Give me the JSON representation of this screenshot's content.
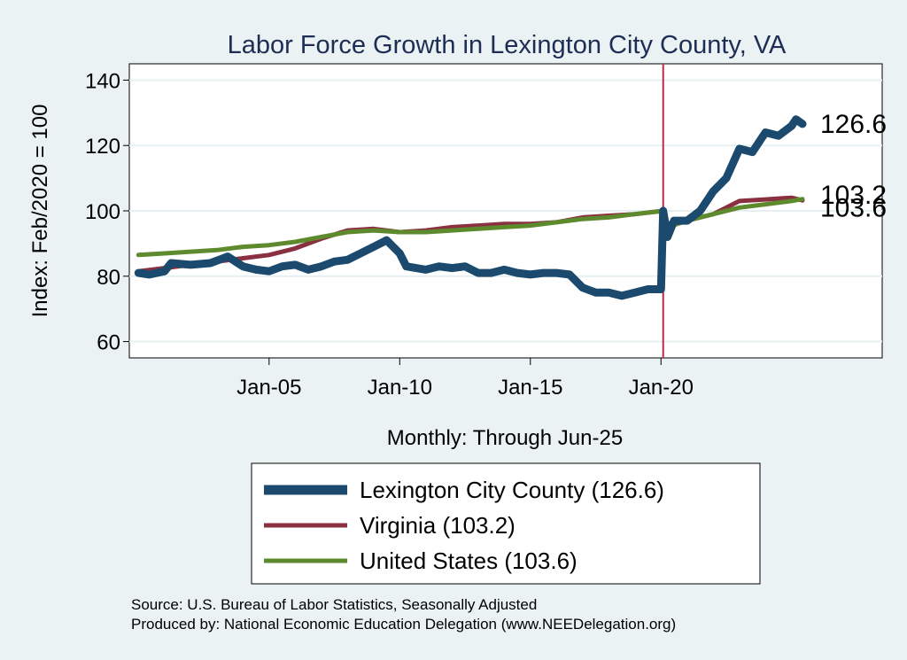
{
  "chart_data": {
    "type": "line",
    "title": "Labor Force Growth in Lexington City  County, VA",
    "xlabel": "Monthly: Through Jun-25",
    "ylabel": "Index: Feb/2020 = 100",
    "x_range": [
      "Jan-2000",
      "Jun-2025"
    ],
    "ylim": [
      55,
      145
    ],
    "y_ticks": [
      60,
      80,
      100,
      120,
      140
    ],
    "x_tick_labels": [
      "Jan-05",
      "Jan-10",
      "Jan-15",
      "Jan-20"
    ],
    "reference_line": {
      "x": "Feb-2020",
      "color": "#c0284a"
    },
    "grid": "horizontal",
    "legend_position": "bottom",
    "series": [
      {
        "name": "Lexington City  County (126.6)",
        "color": "#1b4a6e",
        "end_label": "126.6",
        "points": [
          [
            "Jan-2000",
            81
          ],
          [
            "Jun-2000",
            80.5
          ],
          [
            "Jan-2001",
            81.5
          ],
          [
            "Apr-2001",
            84
          ],
          [
            "Jan-2002",
            83.5
          ],
          [
            "Oct-2002",
            84
          ],
          [
            "Jun-2003",
            86
          ],
          [
            "Jan-2004",
            83
          ],
          [
            "Jul-2004",
            82
          ],
          [
            "Jan-2005",
            81.5
          ],
          [
            "Jul-2005",
            83
          ],
          [
            "Jan-2006",
            83.5
          ],
          [
            "Jul-2006",
            82
          ],
          [
            "Jan-2007",
            83
          ],
          [
            "Jul-2007",
            84.5
          ],
          [
            "Jan-2008",
            85
          ],
          [
            "Jul-2008",
            87
          ],
          [
            "Jan-2009",
            89
          ],
          [
            "Jul-2009",
            91
          ],
          [
            "Jan-2010",
            87
          ],
          [
            "Apr-2010",
            83
          ],
          [
            "Jan-2011",
            82
          ],
          [
            "Jul-2011",
            83
          ],
          [
            "Jan-2012",
            82.5
          ],
          [
            "Jul-2012",
            83
          ],
          [
            "Jan-2013",
            81
          ],
          [
            "Jul-2013",
            81
          ],
          [
            "Jan-2014",
            82
          ],
          [
            "Jul-2014",
            81
          ],
          [
            "Jan-2015",
            80.5
          ],
          [
            "Jul-2015",
            81
          ],
          [
            "Jan-2016",
            81
          ],
          [
            "Jul-2016",
            80.5
          ],
          [
            "Jan-2017",
            76.5
          ],
          [
            "Jul-2017",
            75
          ],
          [
            "Jan-2018",
            75
          ],
          [
            "Jul-2018",
            74
          ],
          [
            "Jan-2019",
            75
          ],
          [
            "Jul-2019",
            76
          ],
          [
            "Jan-2020",
            76
          ],
          [
            "Feb-2020",
            100
          ],
          [
            "Apr-2020",
            92
          ],
          [
            "Jul-2020",
            97
          ],
          [
            "Jan-2021",
            97
          ],
          [
            "Jul-2021",
            100
          ],
          [
            "Jan-2022",
            106
          ],
          [
            "Jul-2022",
            110
          ],
          [
            "Jan-2023",
            119
          ],
          [
            "Jul-2023",
            118
          ],
          [
            "Jan-2024",
            124
          ],
          [
            "Jul-2024",
            123
          ],
          [
            "Jan-2025",
            126
          ],
          [
            "Mar-2025",
            128
          ],
          [
            "Jun-2025",
            126.6
          ]
        ]
      },
      {
        "name": "Virginia (103.2)",
        "color": "#8b3040",
        "end_label": "103.2",
        "points": [
          [
            "Jan-2000",
            81.5
          ],
          [
            "Jan-2001",
            82.5
          ],
          [
            "Jan-2002",
            83.5
          ],
          [
            "Jan-2003",
            84.5
          ],
          [
            "Jan-2004",
            85.5
          ],
          [
            "Jan-2005",
            86.5
          ],
          [
            "Jan-2006",
            88.5
          ],
          [
            "Jan-2007",
            91.5
          ],
          [
            "Jan-2008",
            94
          ],
          [
            "Jan-2009",
            94.5
          ],
          [
            "Jan-2010",
            93.5
          ],
          [
            "Jan-2011",
            94
          ],
          [
            "Jan-2012",
            95
          ],
          [
            "Jan-2013",
            95.5
          ],
          [
            "Jan-2014",
            96
          ],
          [
            "Jan-2015",
            96
          ],
          [
            "Jan-2016",
            96.5
          ],
          [
            "Jan-2017",
            98
          ],
          [
            "Jan-2018",
            98.5
          ],
          [
            "Jan-2019",
            99
          ],
          [
            "Feb-2020",
            100
          ],
          [
            "Apr-2020",
            96
          ],
          [
            "Jan-2021",
            97
          ],
          [
            "Jan-2022",
            99
          ],
          [
            "Jan-2023",
            103
          ],
          [
            "Jan-2024",
            103.5
          ],
          [
            "Jan-2025",
            104
          ],
          [
            "Jun-2025",
            103.2
          ]
        ]
      },
      {
        "name": "United States (103.6)",
        "color": "#5e8a2e",
        "end_label": "103.6",
        "points": [
          [
            "Jan-2000",
            86.5
          ],
          [
            "Jan-2001",
            87
          ],
          [
            "Jan-2002",
            87.5
          ],
          [
            "Jan-2003",
            88
          ],
          [
            "Jan-2004",
            89
          ],
          [
            "Jan-2005",
            89.5
          ],
          [
            "Jan-2006",
            90.5
          ],
          [
            "Jan-2007",
            92
          ],
          [
            "Jan-2008",
            93.5
          ],
          [
            "Jan-2009",
            94
          ],
          [
            "Jan-2010",
            93.5
          ],
          [
            "Jan-2011",
            93.5
          ],
          [
            "Jan-2012",
            94
          ],
          [
            "Jan-2013",
            94.5
          ],
          [
            "Jan-2014",
            95
          ],
          [
            "Jan-2015",
            95.5
          ],
          [
            "Jan-2016",
            96.5
          ],
          [
            "Jan-2017",
            97.5
          ],
          [
            "Jan-2018",
            98
          ],
          [
            "Jan-2019",
            99
          ],
          [
            "Feb-2020",
            100
          ],
          [
            "Apr-2020",
            95
          ],
          [
            "Jan-2021",
            97
          ],
          [
            "Jan-2022",
            99
          ],
          [
            "Jan-2023",
            101
          ],
          [
            "Jan-2024",
            102
          ],
          [
            "Jan-2025",
            103
          ],
          [
            "Jun-2025",
            103.6
          ]
        ]
      }
    ]
  },
  "source": {
    "line1": "Source: U.S. Bureau of Labor Statistics, Seasonally Adjusted",
    "line2": "Produced by: National Economic Education Delegation (www.NEEDelegation.org)"
  },
  "colors": {
    "background": "#eaf2f3",
    "plot_bg": "#ffffff",
    "grid": "#e6eff1"
  }
}
